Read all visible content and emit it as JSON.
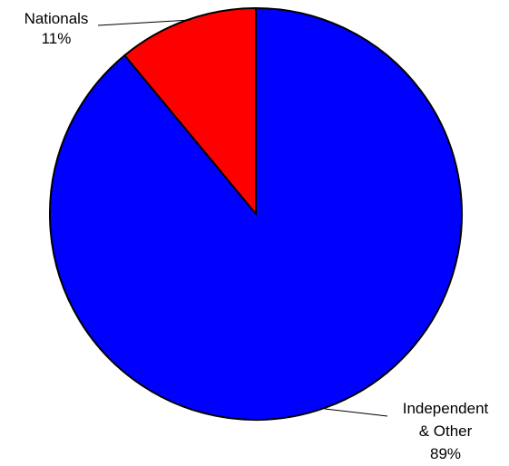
{
  "chart_data": {
    "type": "pie",
    "slices": [
      {
        "label": "Nationals",
        "percent_label": "11%",
        "value": 11,
        "color": "#ff0000"
      },
      {
        "label_lines": [
          "Independent",
          "& Other"
        ],
        "percent_label": "89%",
        "value": 89,
        "color": "#0000ff"
      }
    ],
    "start_angle_deg": 0,
    "direction": "counterclockwise",
    "legend": "none"
  }
}
